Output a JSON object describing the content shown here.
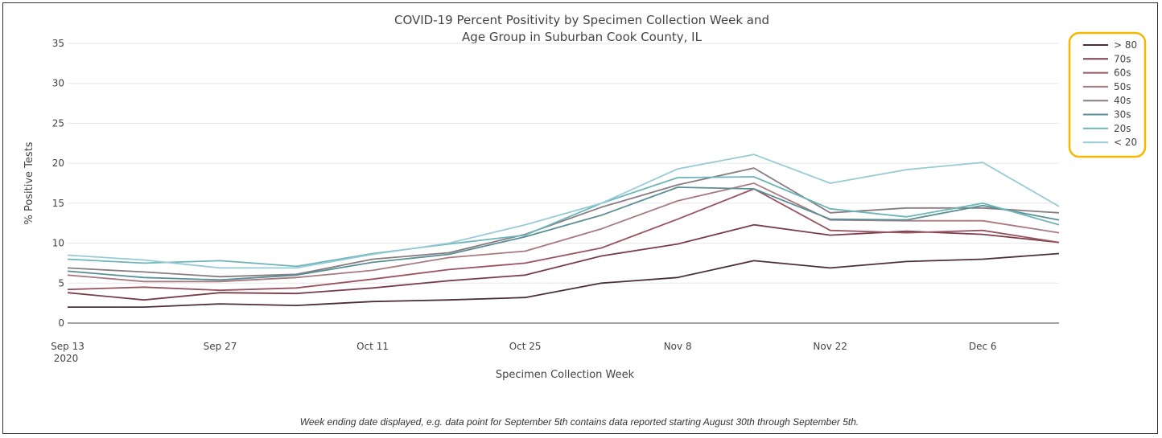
{
  "footnote": "Week ending date displayed, e.g. data point for September 5th contains data reported starting August 30th through September 5th.",
  "highlight_color": "#f5b800",
  "chart_data": {
    "type": "line",
    "title": [
      "COVID-19 Percent Positivity by Specimen Collection Week and",
      "Age Group in Suburban Cook County, IL"
    ],
    "xlabel": "Specimen Collection Week",
    "ylabel": "% Positive Tests",
    "ylim": [
      0,
      35
    ],
    "yticks": [
      0,
      5,
      10,
      15,
      20,
      25,
      30,
      35
    ],
    "x": [
      "2020-09-13",
      "2020-09-20",
      "2020-09-27",
      "2020-10-04",
      "2020-10-11",
      "2020-10-18",
      "2020-10-25",
      "2020-11-01",
      "2020-11-08",
      "2020-11-15",
      "2020-11-22",
      "2020-11-29",
      "2020-12-06",
      "2020-12-13"
    ],
    "xticks": [
      {
        "x": "2020-09-13",
        "label": "Sep 13",
        "sublabel": "2020"
      },
      {
        "x": "2020-09-27",
        "label": "Sep 27"
      },
      {
        "x": "2020-10-11",
        "label": "Oct 11"
      },
      {
        "x": "2020-10-25",
        "label": "Oct 25"
      },
      {
        "x": "2020-11-08",
        "label": "Nov 8"
      },
      {
        "x": "2020-11-22",
        "label": "Nov 22"
      },
      {
        "x": "2020-12-06",
        "label": "Dec 6"
      }
    ],
    "grid": true,
    "legend_position": "top-right",
    "series": [
      {
        "name": "> 80",
        "color": "#4b2f3c",
        "values": [
          2.0,
          2.0,
          2.4,
          2.2,
          2.7,
          2.9,
          3.2,
          5.0,
          5.7,
          7.8,
          6.9,
          7.7,
          8.0,
          8.7
        ]
      },
      {
        "name": "70s",
        "color": "#7a3d4b",
        "values": [
          3.8,
          2.9,
          3.8,
          3.7,
          4.4,
          5.3,
          6.0,
          8.4,
          9.9,
          12.3,
          11.0,
          11.5,
          11.1,
          10.1
        ]
      },
      {
        "name": "60s",
        "color": "#9a5360",
        "values": [
          4.2,
          4.5,
          4.1,
          4.4,
          5.5,
          6.7,
          7.5,
          9.4,
          13.0,
          16.8,
          11.6,
          11.3,
          11.6,
          10.1
        ]
      },
      {
        "name": "50s",
        "color": "#a87a80",
        "values": [
          6.0,
          5.2,
          5.2,
          5.7,
          6.6,
          8.2,
          9.0,
          11.8,
          15.3,
          17.5,
          12.9,
          12.8,
          12.8,
          11.3
        ]
      },
      {
        "name": "40s",
        "color": "#877d81",
        "values": [
          6.9,
          6.4,
          5.8,
          6.1,
          8.0,
          8.8,
          11.1,
          14.5,
          17.3,
          19.4,
          13.8,
          14.4,
          14.4,
          13.8
        ]
      },
      {
        "name": "30s",
        "color": "#5a8f97",
        "values": [
          6.5,
          5.7,
          5.4,
          6.0,
          7.6,
          8.6,
          10.8,
          13.5,
          17.0,
          16.8,
          13.0,
          12.9,
          14.7,
          12.9
        ]
      },
      {
        "name": "20s",
        "color": "#6cb5b9",
        "values": [
          8.0,
          7.5,
          7.8,
          7.1,
          8.7,
          9.9,
          11.0,
          15.0,
          18.2,
          18.3,
          14.3,
          13.3,
          15.0,
          12.3
        ]
      },
      {
        "name": "< 20",
        "color": "#96cbd6",
        "values": [
          8.5,
          7.9,
          6.9,
          6.9,
          8.6,
          10.0,
          12.3,
          15.0,
          19.3,
          21.1,
          17.5,
          19.2,
          20.1,
          14.6
        ]
      }
    ]
  }
}
